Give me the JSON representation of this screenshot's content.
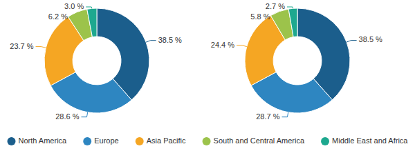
{
  "chart_data": [
    {
      "type": "donut",
      "categories": [
        "North America",
        "Europe",
        "Asia Pacific",
        "South and Central America",
        "Middle East and Africa"
      ],
      "values": [
        38.5,
        28.6,
        23.7,
        6.2,
        3.0
      ],
      "value_labels": [
        "38.5 %",
        "28.6 %",
        "23.7 %",
        "6.2 %",
        "3.0 %"
      ],
      "colors": [
        "#1b5e8c",
        "#2e86c1",
        "#f5a623",
        "#9cc34b",
        "#1ea88f"
      ],
      "data_labels": true,
      "legend": "bottom"
    },
    {
      "type": "donut",
      "categories": [
        "North America",
        "Europe",
        "Asia Pacific",
        "South and Central America",
        "Middle East and Africa"
      ],
      "values": [
        38.5,
        28.7,
        24.4,
        5.8,
        2.7
      ],
      "value_labels": [
        "38.5 %",
        "28.7 %",
        "24.4 %",
        "5.8 %",
        "2.7 %"
      ],
      "colors": [
        "#1b5e8c",
        "#2e86c1",
        "#f5a623",
        "#9cc34b",
        "#1ea88f"
      ],
      "data_labels": true
    }
  ]
}
